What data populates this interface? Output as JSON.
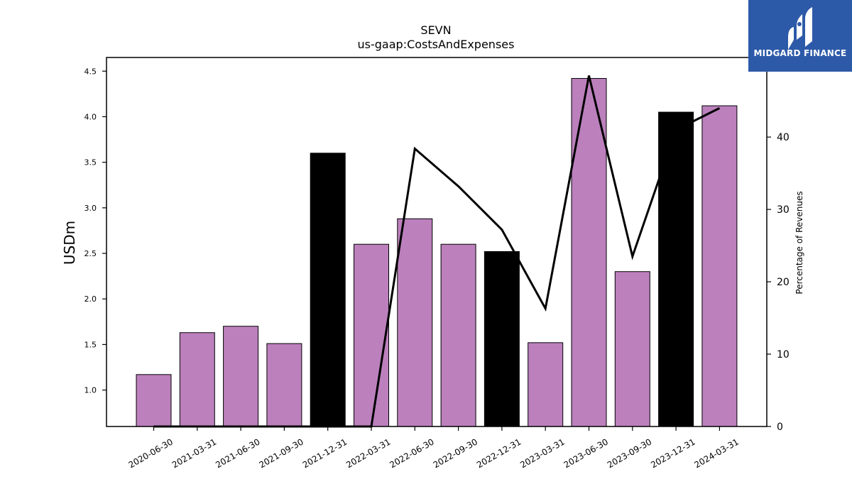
{
  "logo": {
    "text": "MIDGARD FINANCE"
  },
  "chart_data": {
    "type": "bar",
    "title": "SEVN",
    "subtitle": "us-gaap:CostsAndExpenses",
    "ylabel": "USDm",
    "y2label": "Percentage of Revenues",
    "ylim": [
      0.6,
      4.65
    ],
    "y2lim": [
      0,
      51
    ],
    "yticks": [
      "1.0",
      "1.5",
      "2.0",
      "2.5",
      "3.0",
      "3.5",
      "4.0",
      "4.5"
    ],
    "y2ticks": [
      "0",
      "10",
      "20",
      "30",
      "40"
    ],
    "categories": [
      "2020-06-30",
      "2021-03-31",
      "2021-06-30",
      "2021-09-30",
      "2021-12-31",
      "2022-03-31",
      "2022-06-30",
      "2022-09-30",
      "2022-12-31",
      "2023-03-31",
      "2023-06-30",
      "2023-09-30",
      "2023-12-31",
      "2024-03-31"
    ],
    "series": [
      {
        "values": [
          1.17,
          1.63,
          1.7,
          1.51,
          3.6,
          2.6,
          2.88,
          2.6,
          2.52,
          1.52,
          4.42,
          2.3,
          4.05,
          4.12
        ],
        "colors": [
          "#bc80bd",
          "#bc80bd",
          "#bc80bd",
          "#bc80bd",
          "#000000",
          "#bc80bd",
          "#bc80bd",
          "#bc80bd",
          "#000000",
          "#bc80bd",
          "#bc80bd",
          "#bc80bd",
          "#000000",
          "#bc80bd"
        ]
      },
      {
        "type": "line",
        "axis": "right",
        "color": "#000000",
        "values": [
          0,
          0,
          0,
          0,
          0,
          0,
          38.4,
          33.2,
          27.2,
          16.3,
          48.5,
          23.5,
          41.0,
          44.0
        ]
      }
    ]
  }
}
